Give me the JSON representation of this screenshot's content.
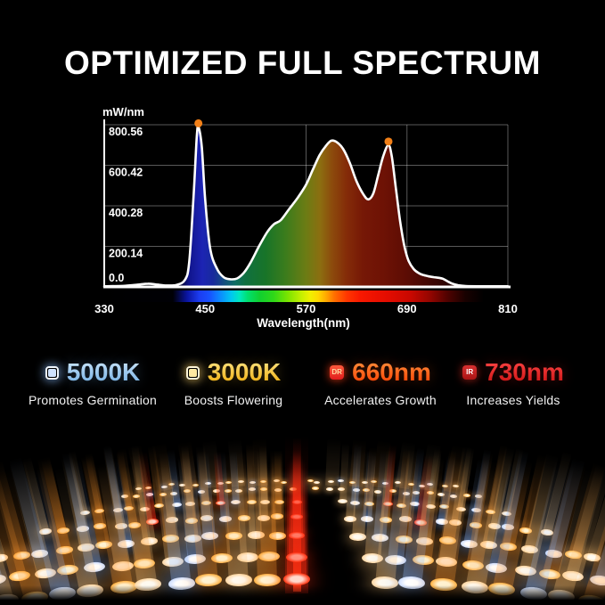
{
  "title": "OPTIMIZED FULL SPECTRUM",
  "chart_data": {
    "type": "area",
    "title": "",
    "xlabel": "Wavelength(nm)",
    "ylabel": "mW/nm",
    "xlim": [
      330,
      810
    ],
    "ylim": [
      0,
      800.56
    ],
    "grid": true,
    "x_tick_labels": [
      "330",
      "450",
      "570",
      "690",
      "810"
    ],
    "y_tick_labels": [
      "0.0",
      "200.14",
      "400.28",
      "600.42",
      "800.56"
    ],
    "series": [
      {
        "name": "spectral power distribution",
        "points": [
          [
            330,
            3
          ],
          [
            352,
            5
          ],
          [
            368,
            10
          ],
          [
            382,
            16
          ],
          [
            392,
            12
          ],
          [
            404,
            7
          ],
          [
            416,
            10
          ],
          [
            426,
            35
          ],
          [
            431,
            120
          ],
          [
            436,
            430
          ],
          [
            440,
            740
          ],
          [
            442,
            790
          ],
          [
            446,
            690
          ],
          [
            450,
            430
          ],
          [
            456,
            190
          ],
          [
            464,
            90
          ],
          [
            472,
            48
          ],
          [
            480,
            38
          ],
          [
            488,
            42
          ],
          [
            496,
            70
          ],
          [
            504,
            120
          ],
          [
            514,
            200
          ],
          [
            524,
            272
          ],
          [
            532,
            310
          ],
          [
            540,
            330
          ],
          [
            550,
            385
          ],
          [
            560,
            440
          ],
          [
            570,
            505
          ],
          [
            578,
            578
          ],
          [
            586,
            650
          ],
          [
            594,
            698
          ],
          [
            600,
            722
          ],
          [
            606,
            716
          ],
          [
            614,
            682
          ],
          [
            622,
            612
          ],
          [
            630,
            522
          ],
          [
            638,
            458
          ],
          [
            644,
            432
          ],
          [
            650,
            462
          ],
          [
            656,
            556
          ],
          [
            662,
            648
          ],
          [
            668,
            700
          ],
          [
            672,
            642
          ],
          [
            677,
            480
          ],
          [
            682,
            320
          ],
          [
            687,
            200
          ],
          [
            692,
            128
          ],
          [
            698,
            88
          ],
          [
            704,
            68
          ],
          [
            710,
            58
          ],
          [
            716,
            52
          ],
          [
            722,
            48
          ],
          [
            728,
            45
          ],
          [
            733,
            40
          ],
          [
            738,
            28
          ],
          [
            744,
            16
          ],
          [
            751,
            8
          ],
          [
            760,
            4
          ],
          [
            775,
            3
          ],
          [
            810,
            3
          ]
        ]
      }
    ],
    "peak_markers": [
      {
        "nm": 442,
        "value": 790,
        "color": "#f28018"
      },
      {
        "nm": 668,
        "value": 700,
        "color": "#f28018"
      }
    ],
    "line_color": "#ffffff",
    "grid_color": "rgba(255,255,255,0.35)",
    "fill_stops": [
      [
        0,
        "#000000"
      ],
      [
        0.18,
        "#02020a"
      ],
      [
        0.21,
        "#10148c"
      ],
      [
        0.243,
        "#1c24b4"
      ],
      [
        0.27,
        "#182a9c"
      ],
      [
        0.3,
        "#14527c"
      ],
      [
        0.325,
        "#0e6e62"
      ],
      [
        0.35,
        "#107040"
      ],
      [
        0.4,
        "#187428"
      ],
      [
        0.45,
        "#3c7c1c"
      ],
      [
        0.5,
        "#6c7c14"
      ],
      [
        0.535,
        "#8c6e10"
      ],
      [
        0.565,
        "#8c4a0c"
      ],
      [
        0.6,
        "#842c08"
      ],
      [
        0.64,
        "#761806"
      ],
      [
        0.69,
        "#6e1205"
      ],
      [
        0.75,
        "#5c0c04"
      ],
      [
        0.82,
        "#3a0603"
      ],
      [
        0.9,
        "#100100"
      ],
      [
        1,
        "#000000"
      ]
    ],
    "bar_stops": [
      [
        0,
        "#000000"
      ],
      [
        0.17,
        "#000005"
      ],
      [
        0.205,
        "#0a14a0"
      ],
      [
        0.235,
        "#1c3cf0"
      ],
      [
        0.26,
        "#1850ff"
      ],
      [
        0.285,
        "#0c86ff"
      ],
      [
        0.315,
        "#00c8f0"
      ],
      [
        0.335,
        "#00e8c0"
      ],
      [
        0.355,
        "#00e070"
      ],
      [
        0.385,
        "#10d030"
      ],
      [
        0.42,
        "#30d818"
      ],
      [
        0.455,
        "#7ce400"
      ],
      [
        0.49,
        "#c8f000"
      ],
      [
        0.51,
        "#f0f000"
      ],
      [
        0.53,
        "#ffd800"
      ],
      [
        0.55,
        "#ffa800"
      ],
      [
        0.57,
        "#ff7000"
      ],
      [
        0.6,
        "#ff3800"
      ],
      [
        0.635,
        "#f81800"
      ],
      [
        0.7,
        "#e40c00"
      ],
      [
        0.76,
        "#c80800"
      ],
      [
        0.81,
        "#900500"
      ],
      [
        0.85,
        "#500200"
      ],
      [
        0.895,
        "#180100"
      ],
      [
        0.94,
        "#000000"
      ]
    ]
  },
  "legend": {
    "items": [
      {
        "icon_type": "square",
        "icon_name": "led-5000k-icon",
        "icon_border": "#f2f8ff",
        "icon_color": "#cfe2ff",
        "icon_glow": "rgba(140,190,255,0.6)",
        "icon_label": "",
        "value": "5000K",
        "value_gradient": [
          "#d6ecfb",
          "#74b0e4"
        ],
        "glow": "rgba(120,180,240,0.35)",
        "caption": "Promotes Germination"
      },
      {
        "icon_type": "square",
        "icon_name": "led-3000k-icon",
        "icon_border": "#fff6d8",
        "icon_color": "#ffe9a2",
        "icon_glow": "rgba(255,214,110,0.6)",
        "icon_label": "",
        "value": "3000K",
        "value_gradient": [
          "#ffe98c",
          "#edaa08"
        ],
        "glow": "rgba(255,200,60,0.3)",
        "caption": "Boosts Flowering"
      },
      {
        "icon_type": "badge",
        "icon_name": "deep-red-dr-icon",
        "icon_border": "#ff5a3c",
        "icon_color": "#e01c1c",
        "icon_glow": "rgba(255,60,20,0.7)",
        "icon_label": "DR",
        "icon_text_color": "#ffd9a2",
        "value": "660nm",
        "value_gradient": [
          "#ff9a44",
          "#ff3c00"
        ],
        "glow": "rgba(255,90,20,0.35)",
        "caption": "Accelerates Growth"
      },
      {
        "icon_type": "badge",
        "icon_name": "infra-red-ir-icon",
        "icon_border": "#d83030",
        "icon_color": "#aa1414",
        "icon_glow": "rgba(220,40,30,0.6)",
        "icon_label": "IR",
        "icon_text_color": "#ffffff",
        "value": "730nm",
        "value_gradient": [
          "#ff4a4a",
          "#c41212"
        ],
        "glow": "rgba(255,40,40,0.3)",
        "caption": "Increases Yields"
      }
    ]
  },
  "led_board": {
    "description": "low-angle photo of lit grow-light LED board with light beams",
    "colors": {
      "amber": {
        "core": "#fff3d2",
        "mid": "#ffb347",
        "glow": "255,150,45"
      },
      "warm": {
        "core": "#fffaf0",
        "mid": "#ffd9a6",
        "glow": "255,196,120"
      },
      "cool": {
        "core": "#ffffff",
        "mid": "#cfdfff",
        "glow": "150,190,255"
      },
      "red": {
        "core": "#ffd8cc",
        "mid": "#ff3c1a",
        "glow": "255,45,18"
      }
    },
    "pattern": [
      "warm",
      "amber",
      "cool",
      "amber",
      "warm",
      "amber",
      "cool",
      "warm",
      "amber",
      "warm",
      "cool",
      "amber",
      "warm",
      "amber",
      "red",
      "gap",
      "gap",
      "warm",
      "cool",
      "amber",
      "warm",
      "amber",
      "cool",
      "warm",
      "amber",
      "warm",
      "cool",
      "amber",
      "warm"
    ]
  }
}
